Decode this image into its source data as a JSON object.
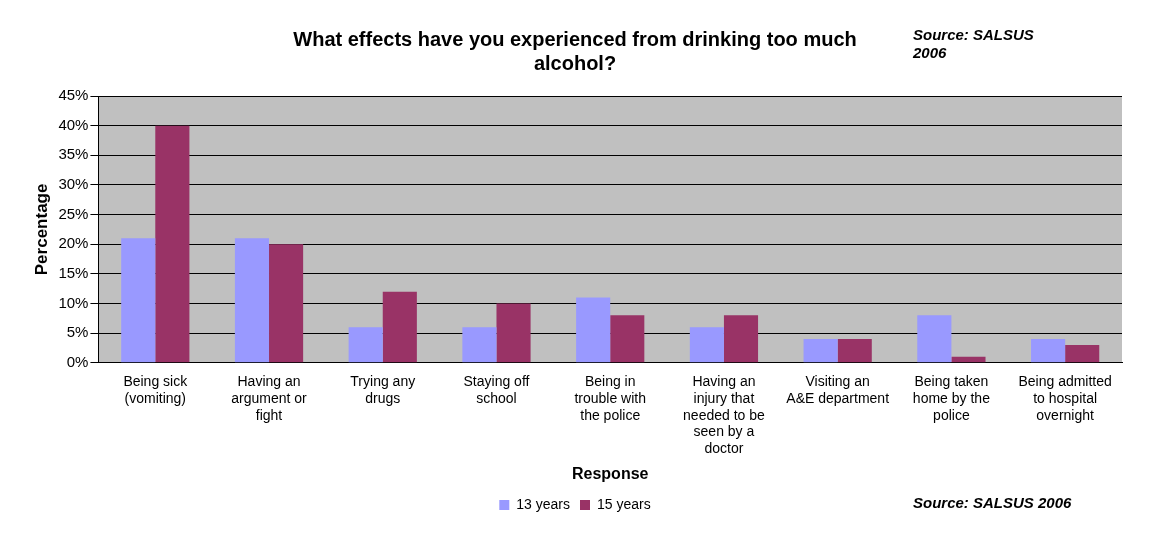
{
  "chart_data": {
    "type": "bar",
    "title": "What effects have you experienced from drinking too much alcohol?",
    "xlabel": "Response",
    "ylabel": "Percentage",
    "categories": [
      "Being sick (vomiting)",
      "Having an argument or fight",
      "Trying any drugs",
      "Staying off school",
      "Being in trouble with the police",
      "Having an injury that needed to be seen by a doctor",
      "Visiting an A&E department",
      "Being taken home by the police",
      "Being admitted to hospital overnight"
    ],
    "series": [
      {
        "name": "13 years",
        "color": "#9999ff",
        "values": [
          21,
          21,
          6,
          6,
          11,
          6,
          4,
          8,
          4
        ]
      },
      {
        "name": "15 years",
        "color": "#993366",
        "values": [
          40,
          20,
          12,
          10,
          8,
          8,
          4,
          1,
          3
        ]
      }
    ],
    "ylim": [
      0,
      45
    ],
    "yticks": [
      {
        "value": 0,
        "label": "0%"
      },
      {
        "value": 5,
        "label": "5%"
      },
      {
        "value": 10,
        "label": "10%"
      },
      {
        "value": 15,
        "label": "15%"
      },
      {
        "value": 20,
        "label": "20%"
      },
      {
        "value": 25,
        "label": "25%"
      },
      {
        "value": 30,
        "label": "30%"
      },
      {
        "value": 35,
        "label": "35%"
      },
      {
        "value": 40,
        "label": "40%"
      },
      {
        "value": 45,
        "label": "45%"
      }
    ],
    "grid": "y",
    "legend": "bottom",
    "annotations": [
      "Source: SALSUS 2006",
      "Source: SALSUS 2006"
    ]
  }
}
